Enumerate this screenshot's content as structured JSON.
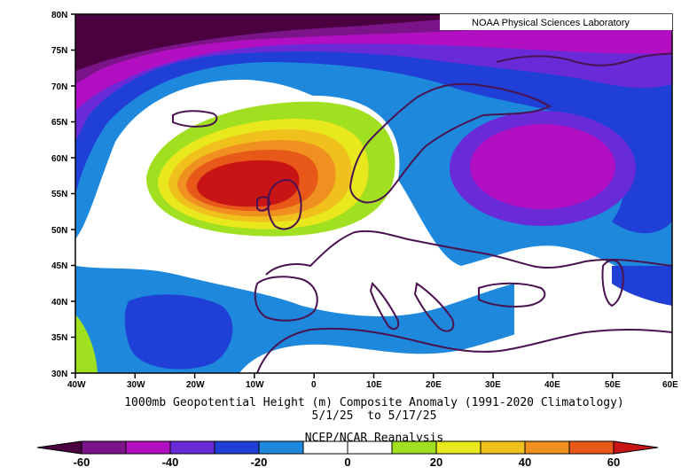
{
  "credit": "NOAA Physical Sciences Laboratory",
  "title": "1000mb Geopotential Height (m) Composite Anomaly (1991-2020 Climatology)",
  "dates": "5/1/25  to 5/17/25",
  "source": "NCEP/NCAR Reanalysis",
  "lat_labels": [
    "80N",
    "75N",
    "70N",
    "65N",
    "60N",
    "55N",
    "50N",
    "45N",
    "40N",
    "35N",
    "30N"
  ],
  "lon_labels": [
    "40W",
    "30W",
    "20W",
    "10W",
    "0",
    "10E",
    "20E",
    "30E",
    "40E",
    "50E",
    "60E"
  ],
  "colorbar": {
    "labels": [
      "-60",
      "-40",
      "-20",
      "0",
      "20",
      "40",
      "60"
    ],
    "colors": [
      "#4b0040",
      "#7a1488",
      "#b20fc2",
      "#6a2ad8",
      "#1f3fd6",
      "#1e88dc",
      "#ffffff",
      "#ffffff",
      "#a0e020",
      "#e8e81c",
      "#f0c01c",
      "#f09020",
      "#e85818",
      "#c81414"
    ]
  },
  "colors": {
    "land_outline": "#4a1250",
    "frame": "#000000"
  }
}
